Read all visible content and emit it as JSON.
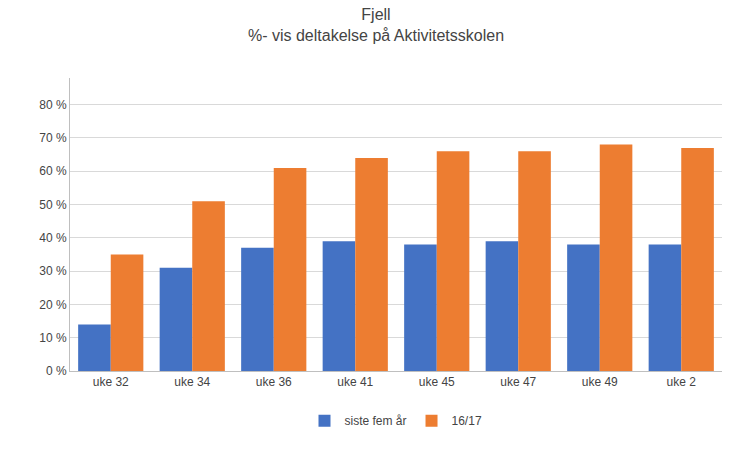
{
  "chart_data": {
    "type": "bar",
    "title": "Fjell",
    "subtitle": "%- vis deltakelse på Aktivitetsskolen",
    "categories": [
      "uke 32",
      "uke 34",
      "uke 36",
      "uke 41",
      "uke 45",
      "uke 47",
      "uke 49",
      "uke 2"
    ],
    "series": [
      {
        "name": "siste fem år",
        "color": "#4472C4",
        "values": [
          0.14,
          0.31,
          0.37,
          0.39,
          0.38,
          0.39,
          0.38,
          0.38
        ]
      },
      {
        "name": "16/17",
        "color": "#ED7D31",
        "values": [
          0.35,
          0.51,
          0.61,
          0.64,
          0.66,
          0.66,
          0.68,
          0.67
        ]
      }
    ],
    "ylim": [
      0,
      0.88
    ],
    "yticks": [
      {
        "value": 0.0,
        "label": "0 %"
      },
      {
        "value": 0.1,
        "label": "10 %"
      },
      {
        "value": 0.2,
        "label": "20 %"
      },
      {
        "value": 0.3,
        "label": "30 %"
      },
      {
        "value": 0.4,
        "label": "40 %"
      },
      {
        "value": 0.5,
        "label": "50 %"
      },
      {
        "value": 0.6,
        "label": "60 %"
      },
      {
        "value": 0.7,
        "label": "70 %"
      },
      {
        "value": 0.8,
        "label": "80 %"
      }
    ],
    "grid": true,
    "legend": "bottom"
  }
}
